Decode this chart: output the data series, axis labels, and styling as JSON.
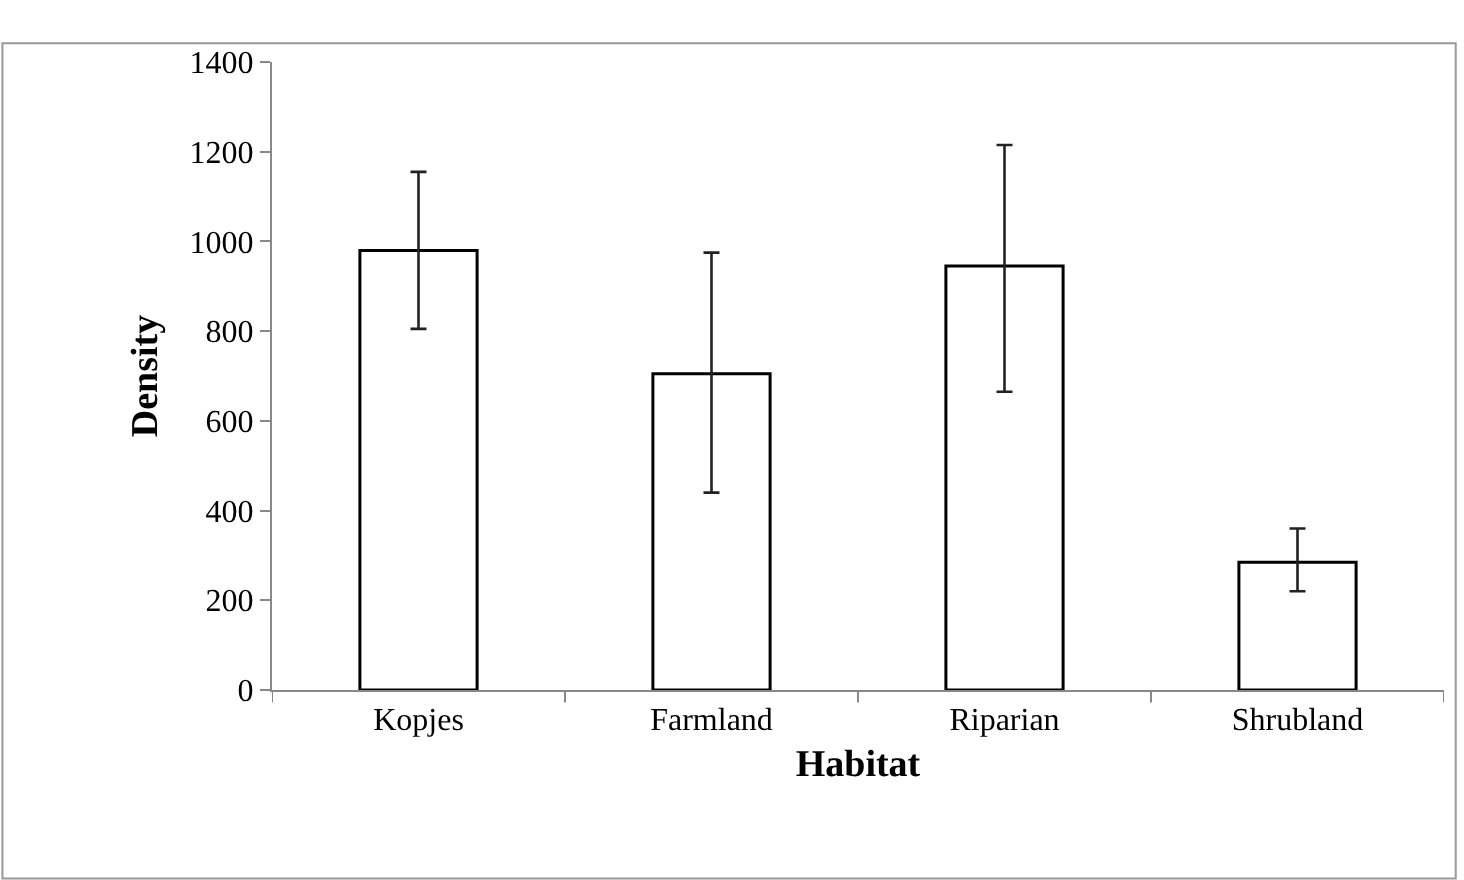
{
  "chart_data": {
    "type": "bar",
    "xlabel": "Habitat",
    "ylabel": "Density",
    "categories": [
      "Kopjes",
      "Farmland",
      "Riparian",
      "Shrubland"
    ],
    "values": [
      980,
      705,
      945,
      285
    ],
    "errors": [
      [
        805,
        1155
      ],
      [
        440,
        975
      ],
      [
        665,
        1215
      ],
      [
        220,
        360
      ]
    ],
    "color": "#ffffff",
    "ylim": [
      0,
      1400
    ],
    "yticks": [
      0,
      200,
      400,
      600,
      800,
      1000,
      1200,
      1400
    ]
  }
}
